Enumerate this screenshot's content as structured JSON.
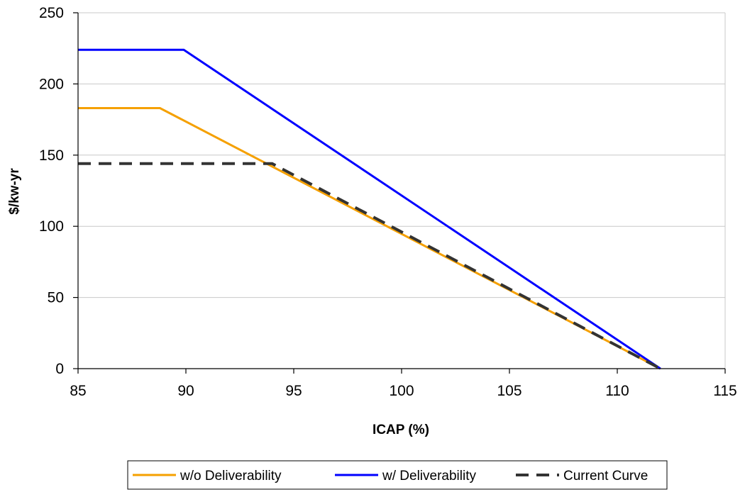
{
  "chart_data": {
    "type": "line",
    "title": "",
    "xlabel": "ICAP (%)",
    "ylabel": "$/kw-yr",
    "xlim": [
      85,
      115
    ],
    "ylim": [
      0,
      250
    ],
    "xticks": [
      85,
      90,
      95,
      100,
      105,
      110,
      115
    ],
    "yticks": [
      0,
      50,
      100,
      150,
      200,
      250
    ],
    "grid": "horizontal",
    "legend_position": "bottom",
    "series": [
      {
        "name": "w/o Deliverability",
        "color": "#f5a000",
        "style": "solid",
        "points": [
          [
            85,
            183
          ],
          [
            88.8,
            183
          ],
          [
            112,
            0
          ]
        ]
      },
      {
        "name": "w/ Deliverability",
        "color": "#0000ff",
        "style": "solid",
        "points": [
          [
            85,
            224
          ],
          [
            89.9,
            224
          ],
          [
            112,
            0
          ]
        ]
      },
      {
        "name": "Current Curve",
        "color": "#333333",
        "style": "dashed",
        "points": [
          [
            85,
            144
          ],
          [
            94,
            144
          ],
          [
            112,
            0
          ]
        ]
      }
    ]
  }
}
